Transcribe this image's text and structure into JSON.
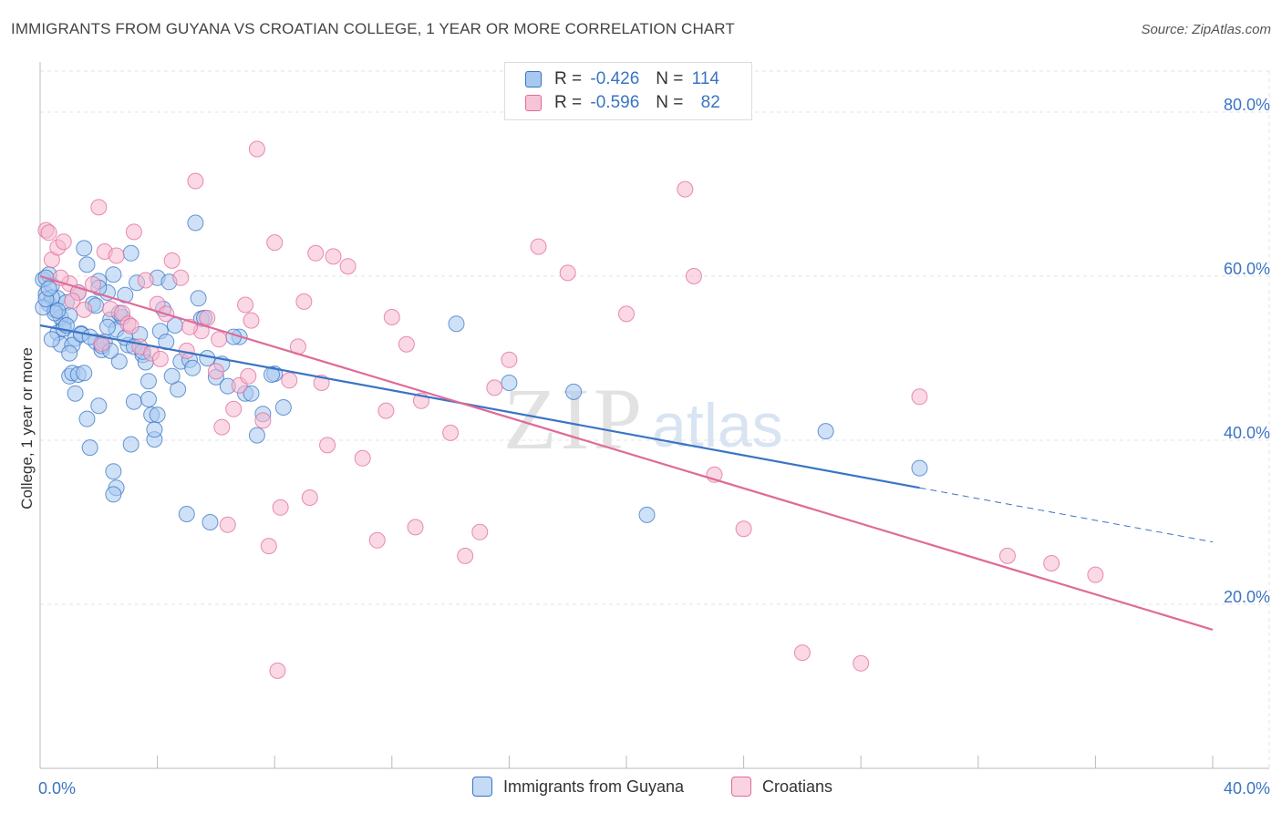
{
  "title": "IMMIGRANTS FROM GUYANA VS CROATIAN COLLEGE, 1 YEAR OR MORE CORRELATION CHART",
  "source": "Source: ZipAtlas.com",
  "watermark": {
    "zip": "ZIP",
    "atlas": "atlas"
  },
  "legend_top": {
    "r_label": "R =",
    "n_label": "N =",
    "series": [
      {
        "r": "-0.426",
        "n": "114"
      },
      {
        "r": "-0.596",
        "n": "82"
      }
    ]
  },
  "colors": {
    "blue": "#3a74c4",
    "blue_fill": "#a8c8f0",
    "pink": "#e06a98",
    "pink_fill": "#f5b8cf"
  },
  "chart_data": {
    "type": "scatter",
    "title": "IMMIGRANTS FROM GUYANA VS CROATIAN COLLEGE, 1 YEAR OR MORE CORRELATION CHART",
    "xlabel": "",
    "ylabel": "College, 1 year or more",
    "xlim": [
      0,
      40
    ],
    "ylim": [
      0,
      85
    ],
    "x_tick_labels": [
      "0.0%",
      "40.0%"
    ],
    "y_ticks": [
      20,
      40,
      60,
      80
    ],
    "y_tick_labels": [
      "20.0%",
      "40.0%",
      "60.0%",
      "80.0%"
    ],
    "series": [
      {
        "name": "Immigrants from Guyana",
        "color": "#3a74c4",
        "trend": {
          "x": [
            0,
            30
          ],
          "y": [
            54.0,
            34.2
          ],
          "dashed_to_x": 40,
          "dashed_to_y": 27.6
        },
        "points": [
          [
            0.1,
            59.6
          ],
          [
            0.2,
            57.8
          ],
          [
            0.3,
            56.6
          ],
          [
            0.4,
            58.9
          ],
          [
            0.3,
            60.2
          ],
          [
            0.5,
            55.9
          ],
          [
            0.6,
            53.1
          ],
          [
            0.7,
            51.7
          ],
          [
            0.6,
            57.3
          ],
          [
            0.8,
            54.2
          ],
          [
            0.9,
            56.8
          ],
          [
            1.0,
            47.8
          ],
          [
            1.1,
            48.2
          ],
          [
            1.2,
            52.4
          ],
          [
            1.3,
            58.0
          ],
          [
            1.4,
            53.0
          ],
          [
            1.5,
            63.4
          ],
          [
            1.6,
            61.4
          ],
          [
            1.8,
            56.6
          ],
          [
            1.9,
            52.0
          ],
          [
            2.0,
            59.4
          ],
          [
            2.1,
            51.0
          ],
          [
            2.2,
            52.0
          ],
          [
            2.3,
            58.0
          ],
          [
            2.4,
            54.7
          ],
          [
            2.5,
            60.2
          ],
          [
            2.6,
            53.5
          ],
          [
            2.7,
            49.6
          ],
          [
            2.8,
            55.0
          ],
          [
            2.9,
            57.7
          ],
          [
            3.0,
            51.6
          ],
          [
            3.1,
            62.8
          ],
          [
            3.2,
            44.7
          ],
          [
            3.3,
            59.2
          ],
          [
            3.4,
            52.9
          ],
          [
            3.5,
            50.4
          ],
          [
            3.6,
            49.5
          ],
          [
            3.7,
            47.2
          ],
          [
            3.8,
            43.1
          ],
          [
            3.9,
            40.1
          ],
          [
            4.0,
            59.8
          ],
          [
            4.1,
            53.3
          ],
          [
            4.2,
            56.0
          ],
          [
            4.3,
            52.0
          ],
          [
            4.4,
            59.3
          ],
          [
            4.6,
            54.0
          ],
          [
            4.7,
            46.2
          ],
          [
            4.8,
            49.6
          ],
          [
            5.0,
            31.0
          ],
          [
            5.1,
            49.8
          ],
          [
            5.3,
            66.5
          ],
          [
            5.4,
            57.3
          ],
          [
            5.5,
            54.8
          ],
          [
            5.6,
            54.9
          ],
          [
            5.7,
            50.0
          ],
          [
            5.8,
            30.0
          ],
          [
            6.0,
            47.7
          ],
          [
            6.2,
            49.3
          ],
          [
            6.4,
            46.6
          ],
          [
            6.8,
            52.6
          ],
          [
            7.0,
            45.7
          ],
          [
            7.2,
            45.7
          ],
          [
            7.4,
            40.6
          ],
          [
            7.6,
            43.2
          ],
          [
            8.0,
            48.1
          ],
          [
            0.2,
            59.8
          ],
          [
            0.4,
            57.4
          ],
          [
            0.7,
            55.0
          ],
          [
            1.0,
            55.2
          ],
          [
            1.3,
            48.0
          ],
          [
            1.6,
            42.6
          ],
          [
            1.7,
            39.1
          ],
          [
            2.0,
            44.2
          ],
          [
            2.5,
            36.2
          ],
          [
            2.6,
            34.2
          ],
          [
            2.5,
            33.4
          ],
          [
            3.1,
            39.5
          ],
          [
            3.7,
            45.0
          ],
          [
            3.9,
            41.3
          ],
          [
            4.0,
            43.1
          ],
          [
            0.5,
            55.5
          ],
          [
            0.8,
            53.6
          ],
          [
            1.1,
            51.6
          ],
          [
            1.4,
            52.9
          ],
          [
            1.7,
            52.6
          ],
          [
            2.1,
            51.5
          ],
          [
            2.4,
            50.9
          ],
          [
            2.9,
            52.5
          ],
          [
            3.2,
            51.4
          ],
          [
            3.5,
            50.8
          ],
          [
            0.1,
            56.2
          ],
          [
            0.2,
            57.2
          ],
          [
            0.3,
            58.5
          ],
          [
            0.6,
            55.8
          ],
          [
            0.9,
            54.0
          ],
          [
            1.2,
            45.7
          ],
          [
            1.5,
            48.2
          ],
          [
            1.9,
            56.4
          ],
          [
            2.3,
            53.8
          ],
          [
            2.7,
            55.5
          ],
          [
            4.5,
            47.8
          ],
          [
            5.2,
            48.8
          ],
          [
            6.6,
            52.6
          ],
          [
            7.9,
            48.0
          ],
          [
            8.3,
            44.0
          ],
          [
            14.2,
            54.2
          ],
          [
            16.0,
            47.0
          ],
          [
            18.2,
            45.9
          ],
          [
            20.7,
            30.9
          ],
          [
            26.8,
            41.1
          ],
          [
            30.0,
            36.6
          ],
          [
            0.4,
            52.3
          ],
          [
            1.0,
            50.6
          ],
          [
            2.0,
            58.6
          ]
        ]
      },
      {
        "name": "Croatians",
        "color": "#e06a98",
        "trend": {
          "x": [
            0,
            40
          ],
          "y": [
            60.0,
            16.9
          ]
        },
        "points": [
          [
            0.2,
            65.6
          ],
          [
            0.4,
            62.0
          ],
          [
            0.6,
            63.5
          ],
          [
            0.8,
            64.2
          ],
          [
            1.0,
            59.1
          ],
          [
            1.3,
            58.0
          ],
          [
            1.5,
            55.9
          ],
          [
            1.8,
            59.0
          ],
          [
            2.0,
            68.4
          ],
          [
            2.2,
            63.0
          ],
          [
            2.4,
            56.0
          ],
          [
            2.6,
            62.5
          ],
          [
            2.8,
            55.5
          ],
          [
            3.0,
            54.2
          ],
          [
            3.2,
            65.4
          ],
          [
            3.4,
            51.4
          ],
          [
            3.6,
            59.5
          ],
          [
            3.8,
            50.6
          ],
          [
            4.0,
            56.6
          ],
          [
            4.3,
            55.4
          ],
          [
            4.5,
            61.9
          ],
          [
            4.8,
            59.8
          ],
          [
            5.0,
            50.9
          ],
          [
            5.3,
            71.6
          ],
          [
            5.5,
            53.3
          ],
          [
            5.7,
            54.9
          ],
          [
            6.0,
            48.4
          ],
          [
            6.2,
            41.6
          ],
          [
            6.4,
            29.7
          ],
          [
            6.6,
            43.8
          ],
          [
            6.8,
            46.7
          ],
          [
            7.0,
            56.5
          ],
          [
            7.2,
            54.6
          ],
          [
            7.4,
            75.5
          ],
          [
            7.6,
            42.4
          ],
          [
            7.8,
            27.1
          ],
          [
            8.0,
            64.1
          ],
          [
            8.2,
            31.8
          ],
          [
            8.5,
            47.3
          ],
          [
            8.8,
            51.4
          ],
          [
            9.0,
            56.9
          ],
          [
            9.2,
            33.0
          ],
          [
            9.4,
            62.8
          ],
          [
            9.6,
            47.0
          ],
          [
            9.8,
            39.4
          ],
          [
            10.0,
            62.4
          ],
          [
            10.5,
            61.2
          ],
          [
            11.0,
            37.8
          ],
          [
            11.5,
            27.8
          ],
          [
            11.8,
            43.6
          ],
          [
            12.0,
            55.0
          ],
          [
            12.5,
            51.7
          ],
          [
            12.8,
            29.4
          ],
          [
            13.0,
            44.8
          ],
          [
            14.0,
            40.9
          ],
          [
            14.5,
            25.9
          ],
          [
            15.0,
            28.8
          ],
          [
            15.5,
            46.4
          ],
          [
            16.0,
            49.8
          ],
          [
            17.0,
            63.6
          ],
          [
            18.0,
            60.4
          ],
          [
            20.0,
            55.4
          ],
          [
            22.0,
            70.6
          ],
          [
            22.3,
            60.0
          ],
          [
            23.0,
            35.8
          ],
          [
            24.0,
            29.2
          ],
          [
            26.0,
            14.1
          ],
          [
            28.0,
            12.8
          ],
          [
            30.0,
            45.3
          ],
          [
            33.0,
            25.9
          ],
          [
            34.5,
            25.0
          ],
          [
            36.0,
            23.6
          ],
          [
            0.3,
            65.3
          ],
          [
            0.7,
            59.8
          ],
          [
            1.1,
            57.0
          ],
          [
            2.1,
            51.8
          ],
          [
            3.1,
            53.9
          ],
          [
            4.1,
            49.9
          ],
          [
            5.1,
            53.8
          ],
          [
            6.1,
            52.3
          ],
          [
            7.1,
            47.8
          ],
          [
            8.1,
            11.9
          ]
        ]
      }
    ]
  },
  "bottom_legend": [
    "Immigrants from Guyana",
    "Croatians"
  ]
}
